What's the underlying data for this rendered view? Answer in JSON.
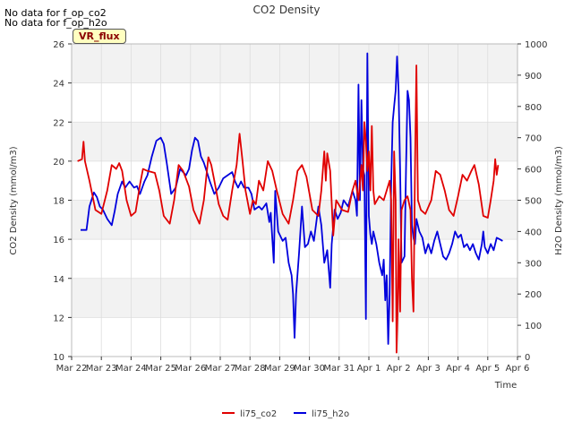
{
  "notes": [
    "No data for f_op_co2",
    "No data for f_op_h2o"
  ],
  "badge": "VR_flux",
  "colors": {
    "co2": "#e00000",
    "h2o": "#0000dd",
    "band": "#f2f2f2",
    "grid": "#dddddd"
  },
  "chart_data": {
    "type": "line",
    "title": "CO2 Density",
    "xlabel": "Time",
    "ylabel_left": "CO2 Density (mmol/m3)",
    "ylabel_right": "H2O Density (mmol/m3)",
    "x_ticks": [
      "Mar 22",
      "Mar 23",
      "Mar 24",
      "Mar 25",
      "Mar 26",
      "Mar 27",
      "Mar 28",
      "Mar 29",
      "Mar 30",
      "Mar 31",
      "Apr 1",
      "Apr 2",
      "Apr 3",
      "Apr 4",
      "Apr 5",
      "Apr 6"
    ],
    "xlim_days": [
      0,
      15
    ],
    "ylim_left": [
      10,
      26
    ],
    "yticks_left": [
      10,
      12,
      14,
      16,
      18,
      20,
      22,
      24,
      26
    ],
    "ylim_right": [
      0,
      1000
    ],
    "yticks_right": [
      0,
      100,
      200,
      300,
      400,
      500,
      600,
      700,
      800,
      900,
      1000
    ],
    "grid": true,
    "legend": "bottom-center",
    "series": [
      {
        "name": "li75_co2",
        "axis": "left",
        "color": "#e00000",
        "points": [
          [
            0.2,
            20.0
          ],
          [
            0.35,
            20.1
          ],
          [
            0.4,
            21.0
          ],
          [
            0.45,
            20.0
          ],
          [
            0.6,
            19.0
          ],
          [
            0.8,
            17.5
          ],
          [
            1.0,
            17.3
          ],
          [
            1.2,
            18.5
          ],
          [
            1.35,
            19.8
          ],
          [
            1.5,
            19.6
          ],
          [
            1.6,
            19.9
          ],
          [
            1.7,
            19.5
          ],
          [
            1.85,
            18.0
          ],
          [
            2.0,
            17.2
          ],
          [
            2.15,
            17.4
          ],
          [
            2.3,
            18.8
          ],
          [
            2.4,
            19.6
          ],
          [
            2.55,
            19.5
          ],
          [
            2.8,
            19.4
          ],
          [
            2.95,
            18.5
          ],
          [
            3.1,
            17.2
          ],
          [
            3.3,
            16.8
          ],
          [
            3.45,
            18.0
          ],
          [
            3.6,
            19.8
          ],
          [
            3.75,
            19.5
          ],
          [
            3.95,
            18.7
          ],
          [
            4.1,
            17.5
          ],
          [
            4.3,
            16.8
          ],
          [
            4.45,
            18.0
          ],
          [
            4.6,
            20.2
          ],
          [
            4.7,
            19.8
          ],
          [
            4.8,
            19.0
          ],
          [
            4.95,
            17.8
          ],
          [
            5.1,
            17.2
          ],
          [
            5.25,
            17.0
          ],
          [
            5.4,
            18.5
          ],
          [
            5.55,
            19.8
          ],
          [
            5.65,
            21.4
          ],
          [
            5.75,
            20.0
          ],
          [
            5.85,
            18.5
          ],
          [
            6.0,
            17.3
          ],
          [
            6.1,
            18.0
          ],
          [
            6.2,
            17.8
          ],
          [
            6.3,
            19.0
          ],
          [
            6.45,
            18.5
          ],
          [
            6.6,
            20.0
          ],
          [
            6.75,
            19.5
          ],
          [
            6.9,
            18.5
          ],
          [
            7.1,
            17.3
          ],
          [
            7.3,
            16.8
          ],
          [
            7.45,
            18.0
          ],
          [
            7.6,
            19.5
          ],
          [
            7.75,
            19.8
          ],
          [
            7.9,
            19.2
          ],
          [
            8.1,
            17.5
          ],
          [
            8.3,
            17.2
          ],
          [
            8.4,
            18.5
          ],
          [
            8.5,
            20.5
          ],
          [
            8.55,
            19.0
          ],
          [
            8.6,
            20.4
          ],
          [
            8.7,
            19.5
          ],
          [
            8.8,
            16.2
          ],
          [
            8.9,
            18.0
          ],
          [
            9.1,
            17.5
          ],
          [
            9.3,
            17.4
          ],
          [
            9.45,
            18.5
          ],
          [
            9.55,
            19.0
          ],
          [
            9.65,
            18.0
          ],
          [
            9.75,
            19.8
          ],
          [
            9.8,
            18.5
          ],
          [
            9.85,
            22.0
          ],
          [
            9.9,
            21.0
          ],
          [
            9.95,
            19.5
          ],
          [
            10.0,
            20.5
          ],
          [
            10.05,
            18.5
          ],
          [
            10.1,
            21.8
          ],
          [
            10.15,
            18.5
          ],
          [
            10.2,
            17.8
          ],
          [
            10.35,
            18.2
          ],
          [
            10.5,
            18.0
          ],
          [
            10.6,
            18.5
          ],
          [
            10.7,
            19.0
          ],
          [
            10.75,
            18.0
          ],
          [
            10.8,
            11.8
          ],
          [
            10.85,
            20.5
          ],
          [
            10.9,
            18.0
          ],
          [
            10.93,
            10.2
          ],
          [
            10.97,
            12.5
          ],
          [
            11.0,
            16.0
          ],
          [
            11.05,
            12.3
          ],
          [
            11.1,
            17.5
          ],
          [
            11.2,
            18.0
          ],
          [
            11.3,
            18.2
          ],
          [
            11.4,
            17.5
          ],
          [
            11.45,
            14.0
          ],
          [
            11.5,
            12.3
          ],
          [
            11.55,
            19.5
          ],
          [
            11.6,
            24.9
          ],
          [
            11.65,
            18.0
          ],
          [
            11.75,
            17.5
          ],
          [
            11.9,
            17.3
          ],
          [
            12.1,
            18.0
          ],
          [
            12.25,
            19.5
          ],
          [
            12.4,
            19.3
          ],
          [
            12.55,
            18.5
          ],
          [
            12.7,
            17.5
          ],
          [
            12.85,
            17.2
          ],
          [
            13.0,
            18.2
          ],
          [
            13.15,
            19.3
          ],
          [
            13.3,
            19.0
          ],
          [
            13.45,
            19.5
          ],
          [
            13.55,
            19.8
          ],
          [
            13.7,
            18.8
          ],
          [
            13.85,
            17.2
          ],
          [
            14.0,
            17.1
          ],
          [
            14.1,
            18.0
          ],
          [
            14.2,
            19.0
          ],
          [
            14.25,
            20.1
          ],
          [
            14.3,
            19.3
          ],
          [
            14.35,
            19.8
          ]
        ]
      },
      {
        "name": "li75_h2o",
        "axis": "right",
        "color": "#0000dd",
        "points": [
          [
            0.3,
            405
          ],
          [
            0.5,
            405
          ],
          [
            0.6,
            480
          ],
          [
            0.75,
            525
          ],
          [
            0.85,
            510
          ],
          [
            0.95,
            480
          ],
          [
            1.05,
            470
          ],
          [
            1.2,
            440
          ],
          [
            1.35,
            420
          ],
          [
            1.45,
            465
          ],
          [
            1.55,
            520
          ],
          [
            1.7,
            560
          ],
          [
            1.8,
            540
          ],
          [
            1.95,
            560
          ],
          [
            2.1,
            540
          ],
          [
            2.2,
            545
          ],
          [
            2.3,
            520
          ],
          [
            2.45,
            560
          ],
          [
            2.55,
            580
          ],
          [
            2.7,
            640
          ],
          [
            2.85,
            690
          ],
          [
            3.0,
            700
          ],
          [
            3.1,
            680
          ],
          [
            3.2,
            620
          ],
          [
            3.35,
            520
          ],
          [
            3.5,
            540
          ],
          [
            3.65,
            600
          ],
          [
            3.75,
            590
          ],
          [
            3.85,
            580
          ],
          [
            3.95,
            600
          ],
          [
            4.05,
            660
          ],
          [
            4.15,
            700
          ],
          [
            4.25,
            690
          ],
          [
            4.35,
            640
          ],
          [
            4.45,
            620
          ],
          [
            4.55,
            590
          ],
          [
            4.65,
            560
          ],
          [
            4.8,
            520
          ],
          [
            4.95,
            540
          ],
          [
            5.1,
            570
          ],
          [
            5.25,
            580
          ],
          [
            5.4,
            590
          ],
          [
            5.5,
            560
          ],
          [
            5.6,
            540
          ],
          [
            5.7,
            560
          ],
          [
            5.8,
            540
          ],
          [
            5.95,
            540
          ],
          [
            6.05,
            520
          ],
          [
            6.15,
            470
          ],
          [
            6.3,
            480
          ],
          [
            6.4,
            470
          ],
          [
            6.55,
            490
          ],
          [
            6.65,
            430
          ],
          [
            6.7,
            460
          ],
          [
            6.8,
            300
          ],
          [
            6.85,
            530
          ],
          [
            6.95,
            400
          ],
          [
            7.1,
            370
          ],
          [
            7.2,
            380
          ],
          [
            7.3,
            300
          ],
          [
            7.4,
            260
          ],
          [
            7.45,
            200
          ],
          [
            7.5,
            60
          ],
          [
            7.55,
            200
          ],
          [
            7.65,
            330
          ],
          [
            7.75,
            480
          ],
          [
            7.85,
            350
          ],
          [
            7.95,
            360
          ],
          [
            8.05,
            400
          ],
          [
            8.15,
            370
          ],
          [
            8.3,
            480
          ],
          [
            8.4,
            420
          ],
          [
            8.5,
            300
          ],
          [
            8.6,
            340
          ],
          [
            8.7,
            220
          ],
          [
            8.75,
            360
          ],
          [
            8.85,
            470
          ],
          [
            8.95,
            440
          ],
          [
            9.05,
            460
          ],
          [
            9.15,
            500
          ],
          [
            9.3,
            480
          ],
          [
            9.45,
            530
          ],
          [
            9.55,
            500
          ],
          [
            9.6,
            450
          ],
          [
            9.65,
            870
          ],
          [
            9.7,
            500
          ],
          [
            9.75,
            820
          ],
          [
            9.8,
            600
          ],
          [
            9.85,
            580
          ],
          [
            9.9,
            120
          ],
          [
            9.95,
            970
          ],
          [
            10.0,
            450
          ],
          [
            10.05,
            390
          ],
          [
            10.1,
            360
          ],
          [
            10.15,
            400
          ],
          [
            10.25,
            360
          ],
          [
            10.35,
            300
          ],
          [
            10.45,
            260
          ],
          [
            10.5,
            310
          ],
          [
            10.55,
            180
          ],
          [
            10.6,
            260
          ],
          [
            10.65,
            40
          ],
          [
            10.7,
            200
          ],
          [
            10.75,
            550
          ],
          [
            10.8,
            750
          ],
          [
            10.85,
            800
          ],
          [
            10.9,
            850
          ],
          [
            10.95,
            960
          ],
          [
            11.0,
            850
          ],
          [
            11.05,
            600
          ],
          [
            11.1,
            300
          ],
          [
            11.2,
            320
          ],
          [
            11.25,
            600
          ],
          [
            11.3,
            850
          ],
          [
            11.35,
            820
          ],
          [
            11.4,
            700
          ],
          [
            11.45,
            420
          ],
          [
            11.5,
            380
          ],
          [
            11.55,
            360
          ],
          [
            11.6,
            440
          ],
          [
            11.7,
            400
          ],
          [
            11.8,
            380
          ],
          [
            11.9,
            330
          ],
          [
            12.0,
            360
          ],
          [
            12.1,
            330
          ],
          [
            12.2,
            370
          ],
          [
            12.3,
            400
          ],
          [
            12.4,
            360
          ],
          [
            12.5,
            320
          ],
          [
            12.6,
            310
          ],
          [
            12.7,
            330
          ],
          [
            12.8,
            360
          ],
          [
            12.9,
            400
          ],
          [
            13.0,
            380
          ],
          [
            13.1,
            390
          ],
          [
            13.2,
            350
          ],
          [
            13.3,
            360
          ],
          [
            13.4,
            340
          ],
          [
            13.5,
            360
          ],
          [
            13.6,
            330
          ],
          [
            13.7,
            310
          ],
          [
            13.8,
            360
          ],
          [
            13.85,
            400
          ],
          [
            13.9,
            350
          ],
          [
            14.0,
            330
          ],
          [
            14.1,
            360
          ],
          [
            14.2,
            340
          ],
          [
            14.3,
            380
          ],
          [
            14.4,
            375
          ],
          [
            14.5,
            370
          ]
        ]
      }
    ]
  }
}
